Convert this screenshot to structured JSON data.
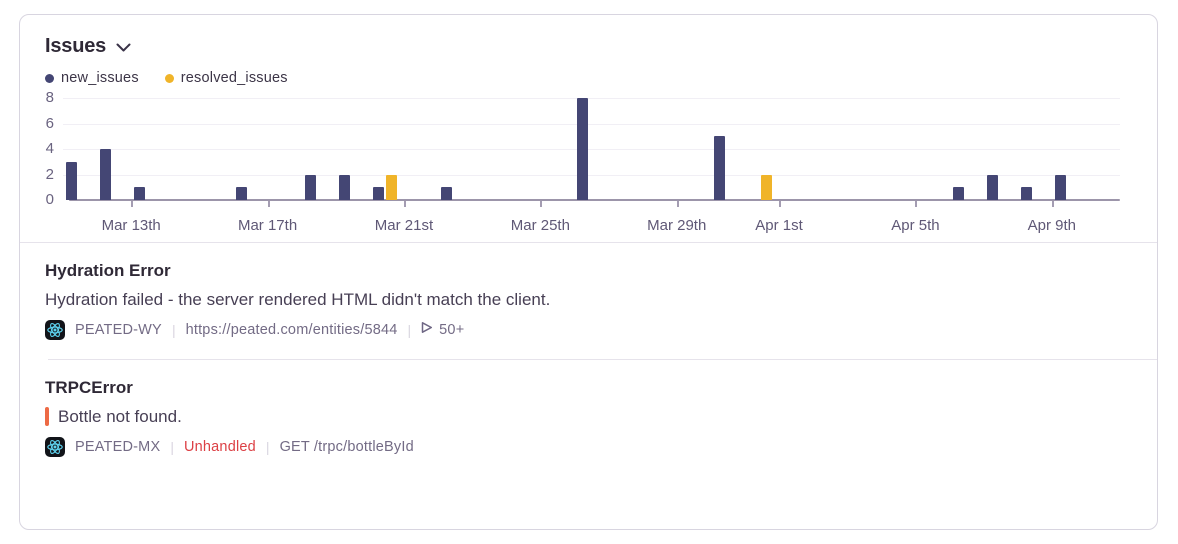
{
  "widget": {
    "title": "Issues",
    "dropdown_icon": "chevron-down-icon"
  },
  "legend": {
    "items": [
      {
        "label": "new_issues",
        "color": "#444674"
      },
      {
        "label": "resolved_issues",
        "color": "#f0b429"
      }
    ]
  },
  "chart_data": {
    "type": "bar",
    "title": "Issues over time",
    "x_domain_days": [
      "Mar 11",
      "Apr 10"
    ],
    "num_day_slots": 31,
    "ylim": [
      0,
      8
    ],
    "y_ticks": [
      0,
      2,
      4,
      6,
      8
    ],
    "grid": "horizontal",
    "legend_position": "top-left",
    "x_ticks": [
      {
        "label": "Mar 13th",
        "day_index": 2
      },
      {
        "label": "Mar 17th",
        "day_index": 6
      },
      {
        "label": "Mar 21st",
        "day_index": 10
      },
      {
        "label": "Mar 25th",
        "day_index": 14
      },
      {
        "label": "Mar 29th",
        "day_index": 18
      },
      {
        "label": "Apr 1st",
        "day_index": 21
      },
      {
        "label": "Apr 5th",
        "day_index": 25
      },
      {
        "label": "Apr 9th",
        "day_index": 29
      }
    ],
    "series": [
      {
        "name": "new_issues",
        "color": "#444674",
        "points": [
          {
            "date": "Mar 11",
            "day_index": 0,
            "value": 3
          },
          {
            "date": "Mar 12",
            "day_index": 1,
            "value": 4
          },
          {
            "date": "Mar 13",
            "day_index": 2,
            "value": 1
          },
          {
            "date": "Mar 16",
            "day_index": 5,
            "value": 1
          },
          {
            "date": "Mar 18",
            "day_index": 7,
            "value": 2
          },
          {
            "date": "Mar 19",
            "day_index": 8,
            "value": 2
          },
          {
            "date": "Mar 20",
            "day_index": 9,
            "value": 1
          },
          {
            "date": "Mar 22",
            "day_index": 11,
            "value": 1
          },
          {
            "date": "Mar 26",
            "day_index": 15,
            "value": 8
          },
          {
            "date": "Mar 30",
            "day_index": 19,
            "value": 5
          },
          {
            "date": "Apr 6",
            "day_index": 26,
            "value": 1
          },
          {
            "date": "Apr 7",
            "day_index": 27,
            "value": 2
          },
          {
            "date": "Apr 8",
            "day_index": 28,
            "value": 1
          },
          {
            "date": "Apr 9",
            "day_index": 29,
            "value": 2
          }
        ]
      },
      {
        "name": "resolved_issues",
        "color": "#f0b429",
        "points": [
          {
            "date": "Mar 20",
            "day_index": 9,
            "value": 2
          },
          {
            "date": "Mar 31",
            "day_index": 20,
            "value": 2
          }
        ]
      }
    ]
  },
  "issues": [
    {
      "title": "Hydration Error",
      "message": "Hydration failed - the server rendered HTML didn't match the client.",
      "platform_icon": "react-icon",
      "short_id": "PEATED-WY",
      "url": "https://peated.com/entities/5844",
      "replay_icon": "play-icon",
      "replay_count": "50+"
    },
    {
      "title": "TRPCError",
      "message": "Bottle not found.",
      "platform_icon": "react-icon",
      "short_id": "PEATED-MX",
      "handling": "Unhandled",
      "transaction": "GET /trpc/bottleById"
    }
  ],
  "colors": {
    "bar_new": "#444674",
    "bar_resolved": "#f0b429",
    "axis_line": "#9c95aa",
    "gridline": "#f1eff5",
    "axis_text": "#6a6380",
    "unhandled_red": "#dc4045",
    "culprit_orange": "#ed6a45",
    "card_border": "#d8d5e0",
    "react_cyan": "#5ed3f0"
  }
}
